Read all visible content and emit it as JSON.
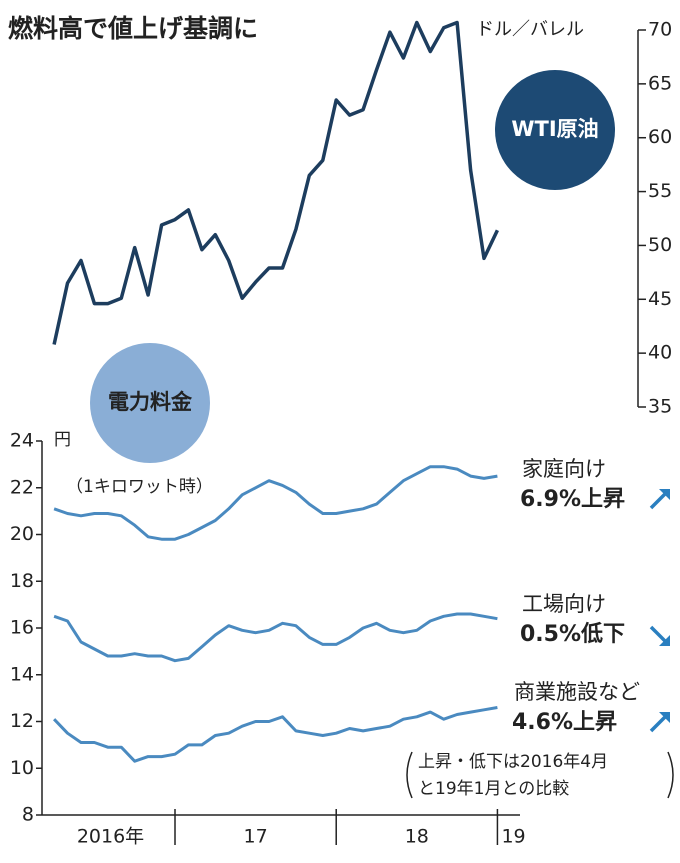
{
  "title": "燃料高で値上げ基調に",
  "chart_data": [
    {
      "type": "line",
      "unit": "ドル／バレル",
      "axis_side": "right",
      "x": [
        2016.25,
        2016.3333,
        2016.4167,
        2016.5,
        2016.5833,
        2016.6667,
        2016.75,
        2016.8333,
        2016.9167,
        2017.0,
        2017.0833,
        2017.1667,
        2017.25,
        2017.3333,
        2017.4167,
        2017.5,
        2017.5833,
        2017.6667,
        2017.75,
        2017.8333,
        2017.9167,
        2018.0,
        2018.0833,
        2018.1667,
        2018.25,
        2018.3333,
        2018.4167,
        2018.5,
        2018.5833,
        2018.6667,
        2018.75,
        2018.8333,
        2018.9167,
        2019.0
      ],
      "xlim": [
        2016.175,
        2019.14
      ],
      "ylim": [
        35,
        70
      ],
      "yticks": [
        35,
        40,
        45,
        50,
        55,
        60,
        65,
        70
      ],
      "series": [
        {
          "name": "WTI原油",
          "color": "#1d3d5e",
          "values": [
            40.8,
            46.5,
            48.6,
            44.6,
            44.6,
            45.1,
            49.8,
            45.4,
            51.9,
            52.4,
            53.3,
            49.6,
            51.0,
            48.6,
            45.1,
            46.6,
            47.9,
            47.9,
            51.5,
            56.5,
            57.9,
            63.5,
            62.1,
            62.6,
            66.3,
            69.8,
            67.4,
            70.7,
            68.0,
            70.2,
            70.7,
            57.0,
            48.8,
            51.4
          ]
        }
      ]
    },
    {
      "type": "line",
      "title": "電力料金",
      "unit": "円",
      "subtitle": "（1キロワット時）",
      "axis_side": "left",
      "x": [
        2016.25,
        2016.3333,
        2016.4167,
        2016.5,
        2016.5833,
        2016.6667,
        2016.75,
        2016.8333,
        2016.9167,
        2017.0,
        2017.0833,
        2017.1667,
        2017.25,
        2017.3333,
        2017.4167,
        2017.5,
        2017.5833,
        2017.6667,
        2017.75,
        2017.8333,
        2017.9167,
        2018.0,
        2018.0833,
        2018.1667,
        2018.25,
        2018.3333,
        2018.4167,
        2018.5,
        2018.5833,
        2018.6667,
        2018.75,
        2018.8333,
        2018.9167,
        2019.0
      ],
      "xlim": [
        2016.175,
        2019.14
      ],
      "xticks": [
        2017,
        2018,
        2019
      ],
      "x_labels": [
        {
          "value": 2016.6,
          "label": "2016年"
        },
        {
          "value": 2017.5,
          "label": "17"
        },
        {
          "value": 2018.5,
          "label": "18"
        },
        {
          "value": 2019.1,
          "label": "19"
        }
      ],
      "ylim": [
        8,
        24
      ],
      "yticks": [
        8,
        10,
        12,
        14,
        16,
        18,
        20,
        22,
        24
      ],
      "series": [
        {
          "name": "家庭向け",
          "change": "6.9%上昇",
          "arrow": "up",
          "color": "#4a8ac0",
          "values": [
            21.1,
            20.9,
            20.8,
            20.9,
            20.9,
            20.8,
            20.4,
            19.9,
            19.8,
            19.8,
            20.0,
            20.3,
            20.6,
            21.1,
            21.7,
            22.0,
            22.3,
            22.1,
            21.8,
            21.3,
            20.9,
            20.9,
            21.0,
            21.1,
            21.3,
            21.8,
            22.3,
            22.6,
            22.9,
            22.9,
            22.8,
            22.5,
            22.4,
            22.5
          ]
        },
        {
          "name": "工場向け",
          "change": "0.5%低下",
          "arrow": "down",
          "color": "#4a8ac0",
          "values": [
            16.5,
            16.3,
            15.4,
            15.1,
            14.8,
            14.8,
            14.9,
            14.8,
            14.8,
            14.6,
            14.7,
            15.2,
            15.7,
            16.1,
            15.9,
            15.8,
            15.9,
            16.2,
            16.1,
            15.6,
            15.3,
            15.3,
            15.6,
            16.0,
            16.2,
            15.9,
            15.8,
            15.9,
            16.3,
            16.5,
            16.6,
            16.6,
            16.5,
            16.4
          ]
        },
        {
          "name": "商業施設など",
          "change": "4.6%上昇",
          "arrow": "up",
          "color": "#4a8ac0",
          "values": [
            12.1,
            11.5,
            11.1,
            11.1,
            10.9,
            10.9,
            10.3,
            10.5,
            10.5,
            10.6,
            11.0,
            11.0,
            11.4,
            11.5,
            11.8,
            12.0,
            12.0,
            12.2,
            11.6,
            11.5,
            11.4,
            11.5,
            11.7,
            11.6,
            11.7,
            11.8,
            12.1,
            12.2,
            12.4,
            12.1,
            12.3,
            12.4,
            12.5,
            12.6
          ]
        }
      ],
      "note": [
        "上昇・低下は2016年4月",
        "と19年1月との比較"
      ]
    }
  ]
}
